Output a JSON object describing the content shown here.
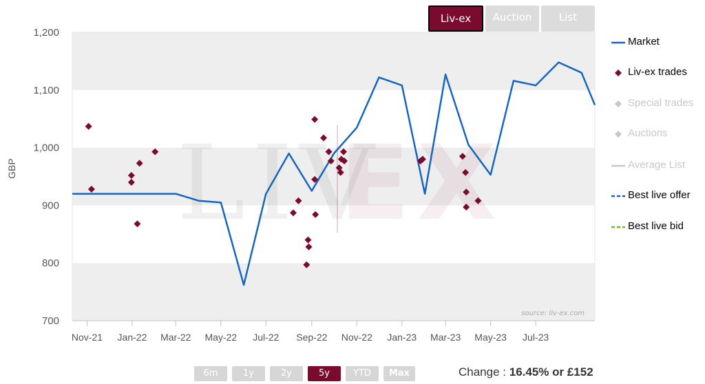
{
  "tabs": [
    {
      "label": "Liv-ex",
      "active": true
    },
    {
      "label": "Auction",
      "active": false
    },
    {
      "label": "List",
      "active": false
    }
  ],
  "range_buttons": [
    {
      "label": "6m",
      "active": false
    },
    {
      "label": "1y",
      "active": false
    },
    {
      "label": "2y",
      "active": false
    },
    {
      "label": "5y",
      "active": true
    },
    {
      "label": "YTD",
      "active": false
    },
    {
      "label": "Max",
      "active": false
    }
  ],
  "change": {
    "prefix": "Change :",
    "value": "16.45% or £152"
  },
  "watermark": {
    "text": "LIVEX",
    "source": "source: liv-ex.com"
  },
  "colors": {
    "market": "#1565c0",
    "trades": "#7a0b2e",
    "brand": "#7a0b2e",
    "special": "#c8c8c8",
    "auctions": "#c8c8c8",
    "avg_list": "#c8c8c8",
    "best_offer": "#1565c0",
    "best_bid": "#66bb33"
  },
  "chart_data": {
    "type": "line",
    "title": "",
    "ylabel": "GBP",
    "xlabel": "",
    "ylim": [
      700,
      1200
    ],
    "yticks": [
      700,
      800,
      900,
      1000,
      1100,
      1200
    ],
    "ytick_labels": [
      "700",
      "800",
      "900",
      "1,000",
      "1,100",
      "1,200"
    ],
    "xlim": [
      "2021-10-12",
      "2023-09-19"
    ],
    "xticks": [
      "2021-11-01",
      "2022-01-01",
      "2022-03-01",
      "2022-05-01",
      "2022-07-01",
      "2022-09-01",
      "2022-11-01",
      "2023-01-01",
      "2023-03-01",
      "2023-05-01",
      "2023-07-01"
    ],
    "xtick_labels": [
      "Nov-21",
      "Jan-22",
      "Mar-22",
      "May-22",
      "Jul-22",
      "Sep-22",
      "Nov-22",
      "Jan-23",
      "Mar-23",
      "May-23",
      "Jul-23"
    ],
    "grid": true,
    "legend_position": "right",
    "series": [
      {
        "name": "Market",
        "type": "line",
        "x": [
          "2021-10-12",
          "2021-12-01",
          "2022-01-01",
          "2022-02-01",
          "2022-03-01",
          "2022-04-01",
          "2022-05-01",
          "2022-06-01",
          "2022-07-01",
          "2022-08-01",
          "2022-09-01",
          "2022-10-01",
          "2022-11-01",
          "2022-12-01",
          "2023-01-01",
          "2023-02-01",
          "2023-03-01",
          "2023-04-01",
          "2023-05-01",
          "2023-06-01",
          "2023-07-01",
          "2023-08-01",
          "2023-09-01",
          "2023-09-19"
        ],
        "y": [
          920,
          920,
          920,
          920,
          920,
          908,
          905,
          762,
          920,
          990,
          925,
          990,
          1035,
          1122,
          1108,
          920,
          1127,
          1005,
          953,
          1116,
          1108,
          1148,
          1130,
          1074
        ]
      },
      {
        "name": "Liv-ex trades",
        "type": "scatter",
        "x": [
          "2021-11-03",
          "2021-11-07",
          "2021-12-31",
          "2021-12-31",
          "2022-01-08",
          "2022-01-11",
          "2022-02-01",
          "2022-08-07",
          "2022-08-14",
          "2022-08-25",
          "2022-08-27",
          "2022-08-28",
          "2022-09-05",
          "2022-09-05",
          "2022-09-06",
          "2022-09-17",
          "2022-09-24",
          "2022-09-27",
          "2022-10-08",
          "2022-10-10",
          "2022-10-11",
          "2022-10-14",
          "2022-10-15",
          "2023-01-26",
          "2023-01-29",
          "2023-03-24",
          "2023-03-28",
          "2023-03-29",
          "2023-03-29",
          "2023-04-14"
        ],
        "y": [
          1037,
          928,
          952,
          940,
          868,
          973,
          993,
          887,
          908,
          797,
          840,
          828,
          1049,
          945,
          884,
          1017,
          993,
          977,
          965,
          957,
          980,
          993,
          977,
          977,
          980,
          985,
          957,
          923,
          897,
          908
        ]
      },
      {
        "name": "Special trades",
        "type": "scatter",
        "x": [],
        "y": []
      },
      {
        "name": "Auctions",
        "type": "scatter",
        "x": [],
        "y": []
      },
      {
        "name": "Average List",
        "type": "line",
        "x": [],
        "y": []
      },
      {
        "name": "Best live offer",
        "type": "line",
        "x": [],
        "y": []
      },
      {
        "name": "Best live bid",
        "type": "line",
        "x": [],
        "y": []
      }
    ]
  }
}
